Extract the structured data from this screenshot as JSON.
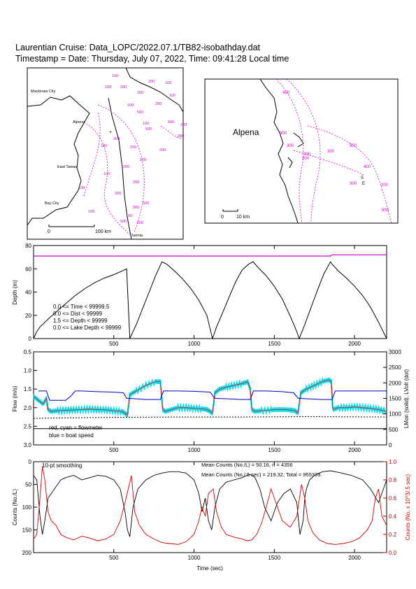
{
  "header": {
    "title": "Laurentian Cruise: Data_LOPC/2022.07.1/TB82-isobathday.dat",
    "timestamp": "Timestamp = Date: Thursday, July 07, 2022, Time: 09:41:28 Local time"
  },
  "colors": {
    "isobath": "#cc00cc",
    "track": "#000000",
    "lake_depth": "#cc00cc",
    "flowmeter_red": "#ff0000",
    "flowmeter_cyan": "#00e0f0",
    "boat_speed": "#0000cc",
    "counts_smoothed": "#000000",
    "counts_5sec": "#cc0000"
  },
  "map_overview": {
    "places": [
      "Mackinaw City",
      "Alpena",
      "East Tawas",
      "Bay City",
      "Sarnia"
    ],
    "scale_bar": {
      "zero": "0",
      "label": "100 km"
    },
    "isobaths": [
      "100",
      "100",
      "200",
      "200",
      "100",
      "100",
      "100",
      "200",
      "100",
      "500",
      "500",
      "200",
      "500",
      "200",
      "300",
      "100",
      "200",
      "200",
      "100",
      "200",
      "100",
      "200",
      "200",
      "500",
      "500",
      "100",
      "100",
      "100",
      "500",
      "500",
      "100"
    ]
  },
  "map_zoom": {
    "place": "Alpena",
    "scale_bar": {
      "zero": "0",
      "label": "10 km"
    },
    "isobaths": [
      "400",
      "300",
      "300",
      "300",
      "300",
      "500",
      "300",
      "400",
      "300",
      "200",
      "500"
    ],
    "markers": [
      "S",
      "E"
    ]
  },
  "chart_data": [
    {
      "type": "line",
      "name": "depth",
      "ylabel": "Depth (m)",
      "xlim": [
        0,
        2200
      ],
      "ylim": [
        80,
        0
      ],
      "xticks": [
        500,
        1000,
        1500,
        2000
      ],
      "yticks": [
        0,
        20,
        40,
        60,
        80
      ],
      "series": [
        {
          "name": "",
          "x": [
            0,
            20,
            40,
            70,
            100,
            150,
            200,
            260,
            320,
            380,
            440,
            500,
            550,
            580,
            600,
            640,
            680,
            720,
            760,
            800,
            830,
            880,
            930,
            980,
            1030,
            1080,
            1115,
            1140,
            1180,
            1220,
            1260,
            1300,
            1340,
            1368,
            1400,
            1450,
            1500,
            1550,
            1600,
            1640,
            1655,
            1690,
            1730,
            1770,
            1810,
            1850,
            1860,
            1900,
            1950,
            2000,
            2050,
            2100,
            2150,
            2200
          ],
          "y": [
            0,
            6,
            10,
            14,
            18,
            24,
            30,
            37,
            43,
            48,
            52,
            55,
            58,
            60,
            0,
            12,
            26,
            40,
            54,
            66,
            64,
            58,
            51,
            43,
            33,
            20,
            0,
            10,
            23,
            36,
            49,
            59,
            64,
            66,
            61,
            54,
            45,
            34,
            19,
            6,
            0,
            12,
            27,
            42,
            56,
            66,
            64,
            58,
            52,
            45,
            37,
            27,
            14,
            0
          ]
        },
        {
          "name": "",
          "x": [
            0,
            1850,
            1860,
            2200
          ],
          "y": [
            71,
            71,
            72,
            72
          ]
        }
      ],
      "annotations": [
        "0.0 <= Time < 99999.5",
        "0.0 <= Dist < 99999",
        "1.5 <= Depth < 99999",
        "0.0 <= Lake Depth < 99999"
      ]
    },
    {
      "type": "line",
      "name": "flow",
      "ylabel": "Flow (m/s)",
      "ylabel_right": "LMon (solid), LVolt (dot)",
      "xlim": [
        0,
        2200
      ],
      "ylim": [
        0.5,
        3.0
      ],
      "ylim_right": [
        0,
        3000
      ],
      "xticks": [
        500,
        1000,
        1500,
        2000
      ],
      "yticks": [
        0.5,
        1.0,
        1.5,
        2.0,
        2.5,
        3.0
      ],
      "yticks_right": [
        0,
        500,
        1000,
        1500,
        2000,
        2500,
        3000
      ],
      "series": [
        {
          "name": "",
          "x": [
            0,
            30,
            60,
            80,
            90,
            110,
            150,
            200,
            250,
            300,
            350,
            400,
            450,
            500,
            550,
            570,
            585,
            600,
            640,
            700,
            760,
            790,
            805,
            820,
            860,
            900,
            950,
            1000,
            1050,
            1080,
            1100,
            1115,
            1130,
            1160,
            1200,
            1250,
            1300,
            1335,
            1350,
            1360,
            1380,
            1420,
            1480,
            1520,
            1560,
            1600,
            1630,
            1648,
            1665,
            1700,
            1750,
            1800,
            1840,
            1855,
            1865,
            1900,
            1950,
            2000,
            2050,
            2100,
            2150,
            2200
          ],
          "y": [
            1.7,
            1.8,
            1.9,
            1.75,
            2.05,
            2.1,
            2.08,
            2.07,
            2.06,
            2.05,
            2.04,
            2.05,
            2.06,
            2.08,
            2.1,
            2.15,
            2.2,
            1.65,
            1.55,
            1.4,
            1.3,
            1.3,
            2.05,
            2.1,
            2.05,
            2.0,
            2.0,
            2.02,
            2.03,
            2.05,
            2.1,
            2.15,
            1.6,
            1.5,
            1.45,
            1.4,
            1.35,
            1.3,
            1.5,
            2.05,
            2.1,
            2.08,
            2.06,
            2.05,
            2.05,
            2.06,
            2.08,
            2.15,
            1.6,
            1.5,
            1.4,
            1.3,
            1.25,
            1.3,
            2.05,
            2.0,
            2.0,
            1.98,
            2.0,
            2.02,
            2.05,
            2.1
          ]
        },
        {
          "name": "",
          "x": [
            30,
            80,
            100,
            200,
            230,
            260,
            300,
            400,
            500,
            560,
            580,
            600,
            700,
            790,
            810,
            900,
            1000,
            1100,
            1130,
            1200,
            1300,
            1350,
            1370,
            1450,
            1550,
            1620,
            1650,
            1700,
            1800,
            1860,
            1880,
            1950,
            2050,
            2150,
            2200
          ],
          "y": [
            1.55,
            1.55,
            1.8,
            1.8,
            1.7,
            1.55,
            1.55,
            1.57,
            1.58,
            1.6,
            1.75,
            1.75,
            1.78,
            1.78,
            1.55,
            1.55,
            1.56,
            1.58,
            1.75,
            1.76,
            1.78,
            1.78,
            1.55,
            1.55,
            1.57,
            1.6,
            1.75,
            1.76,
            1.78,
            1.78,
            1.55,
            1.55,
            1.55,
            1.55,
            1.55
          ]
        },
        {
          "name": "",
          "x": [
            0,
            2200
          ],
          "y": [
            2.5625,
            2.5625
          ]
        },
        {
          "name": "",
          "x": [
            0,
            100,
            500,
            900,
            1300,
            1700,
            2200
          ],
          "y": [
            2.29,
            2.28,
            2.26,
            2.25,
            2.25,
            2.24,
            2.25
          ]
        }
      ],
      "annotations": [
        "red, cyan = flowmeter",
        "blue = boat speed"
      ]
    },
    {
      "type": "line",
      "name": "counts",
      "xlabel": "Time (sec)",
      "ylabel": "Counts (No./L)",
      "ylabel_right": "Counts (No. x 10^3/.5 sec)",
      "xlim": [
        0,
        2200
      ],
      "ylim": [
        0,
        200
      ],
      "ylim_right": [
        0,
        1.0
      ],
      "xticks": [
        500,
        1000,
        1500,
        2000
      ],
      "yticks": [
        0,
        50,
        100,
        150,
        200
      ],
      "yticks_right": [
        0.0,
        0.2,
        0.4,
        0.6,
        0.8,
        1.0
      ],
      "annotations": [
        "10-pt smoothing",
        "Mean Counts (No./L) = 50.16, n =  4356",
        "Mean Counts (No./.5 sec) = 219.32, Total =  955339."
      ],
      "series": [
        {
          "name": "",
          "x": [
            0,
            20,
            40,
            55,
            70,
            90,
            110,
            140,
            170,
            200,
            250,
            300,
            350,
            400,
            450,
            500,
            540,
            570,
            585,
            600,
            620,
            650,
            700,
            750,
            800,
            850,
            900,
            950,
            1000,
            1030,
            1050,
            1070,
            1090,
            1110,
            1130,
            1160,
            1200,
            1250,
            1300,
            1330,
            1350,
            1380,
            1410,
            1440,
            1480,
            1520,
            1560,
            1600,
            1640,
            1660,
            1680,
            1690,
            1700,
            1720,
            1750,
            1800,
            1850,
            1880,
            1920,
            1980,
            2050,
            2100,
            2150,
            2200
          ],
          "y": [
            30,
            40,
            120,
            160,
            130,
            80,
            70,
            55,
            40,
            35,
            30,
            40,
            35,
            30,
            32,
            40,
            60,
            110,
            150,
            165,
            100,
            60,
            40,
            30,
            25,
            22,
            22,
            25,
            40,
            70,
            110,
            80,
            130,
            150,
            100,
            60,
            45,
            40,
            35,
            30,
            28,
            35,
            60,
            100,
            130,
            90,
            70,
            60,
            90,
            160,
            130,
            80,
            60,
            40,
            30,
            22,
            20,
            22,
            25,
            30,
            40,
            60,
            90,
            40
          ]
        },
        {
          "name": "",
          "x": [
            0,
            20,
            40,
            55,
            70,
            90,
            110,
            140,
            170,
            200,
            250,
            300,
            350,
            400,
            450,
            500,
            540,
            570,
            590,
            610,
            630,
            660,
            700,
            750,
            800,
            850,
            900,
            950,
            1000,
            1030,
            1050,
            1070,
            1090,
            1120,
            1140,
            1170,
            1200,
            1250,
            1300,
            1330,
            1360,
            1390,
            1420,
            1450,
            1480,
            1510,
            1550,
            1600,
            1640,
            1670,
            1690,
            1710,
            1740,
            1780,
            1830,
            1880,
            1930,
            1980,
            2030,
            2080,
            2110,
            2130,
            2150,
            2170,
            2200
          ],
          "y": [
            0.15,
            0.2,
            0.6,
            0.95,
            0.8,
            0.45,
            0.35,
            0.3,
            0.2,
            0.17,
            0.14,
            0.18,
            0.16,
            0.13,
            0.15,
            0.2,
            0.35,
            0.55,
            0.7,
            0.85,
            0.45,
            0.3,
            0.2,
            0.15,
            0.11,
            0.1,
            0.09,
            0.12,
            0.2,
            0.35,
            0.5,
            0.4,
            0.65,
            0.7,
            0.45,
            0.28,
            0.2,
            0.17,
            0.15,
            0.13,
            0.14,
            0.2,
            0.32,
            0.5,
            0.7,
            0.55,
            0.35,
            0.28,
            0.4,
            0.75,
            0.6,
            0.35,
            0.22,
            0.14,
            0.1,
            0.09,
            0.1,
            0.12,
            0.16,
            0.25,
            0.35,
            0.6,
            0.7,
            0.4,
            0.3
          ]
        }
      ]
    }
  ]
}
